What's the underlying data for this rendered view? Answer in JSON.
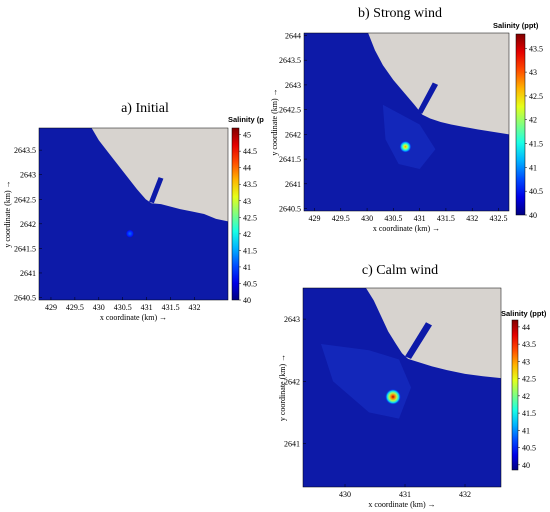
{
  "chart_data": [
    {
      "type": "heatmap",
      "title": "a) Initial",
      "xlabel": "x coordinate (km) →",
      "ylabel": "y coordinate (km) →",
      "xlim": [
        428.75,
        432.7
      ],
      "ylim": [
        2640.45,
        2643.95
      ],
      "x_ticks": [
        "429",
        "429.5",
        "430",
        "430.5",
        "431",
        "431.5",
        "432"
      ],
      "y_ticks": [
        "2640.5",
        "2641",
        "2641.5",
        "2642",
        "2642.5",
        "2643",
        "2643.5"
      ],
      "colorbar": {
        "label": "Salinity (p",
        "range": [
          40,
          45.2
        ],
        "ticks": [
          "40",
          "40.5",
          "41",
          "41.5",
          "42",
          "42.5",
          "43",
          "43.5",
          "44",
          "44.5",
          "45"
        ]
      },
      "colors": {
        "background": "#0d1aa8",
        "land": "#d7d3cf"
      },
      "hotspot": {
        "x": 430.65,
        "y": 2641.8,
        "peak": 41.2
      }
    },
    {
      "type": "heatmap",
      "title": "b) Strong wind",
      "xlabel": "x coordinate (km) →",
      "ylabel": "y coordinate (km) →",
      "xlim": [
        428.8,
        432.7
      ],
      "ylim": [
        2640.45,
        2644.05
      ],
      "x_ticks": [
        "429",
        "429.5",
        "430",
        "430.5",
        "431",
        "431.5",
        "432",
        "432.5"
      ],
      "y_ticks": [
        "2640.5",
        "2641",
        "2641.5",
        "2642",
        "2642.5",
        "2643",
        "2643.5",
        "2644"
      ],
      "colorbar": {
        "label": "Salinity (ppt)",
        "range": [
          40,
          43.8
        ],
        "ticks": [
          "40",
          "40.5",
          "41",
          "41.5",
          "42",
          "42.5",
          "43",
          "43.5"
        ]
      },
      "colors": {
        "background": "#0d1aa8",
        "land": "#d7d3cf"
      },
      "hotspot": {
        "x": 430.73,
        "y": 2641.75,
        "peak": 42.8
      }
    },
    {
      "type": "heatmap",
      "title": "c) Calm wind",
      "xlabel": "x coordinate (km) →",
      "ylabel": "y coordinate (km) →",
      "xlim": [
        429.3,
        432.6
      ],
      "ylim": [
        2640.3,
        2643.5
      ],
      "x_ticks": [
        "430",
        "431",
        "432"
      ],
      "y_ticks": [
        "2641",
        "2642",
        "2643"
      ],
      "colorbar": {
        "label": "Salinity (ppt)",
        "range": [
          39.85,
          44.2
        ],
        "ticks": [
          "40",
          "40.5",
          "41",
          "41.5",
          "42",
          "42.5",
          "43",
          "43.5",
          "44"
        ]
      },
      "colors": {
        "background": "#0d1aa8",
        "land": "#d7d3cf"
      },
      "hotspot": {
        "x": 430.8,
        "y": 2641.75,
        "peak": 44.0
      }
    }
  ]
}
